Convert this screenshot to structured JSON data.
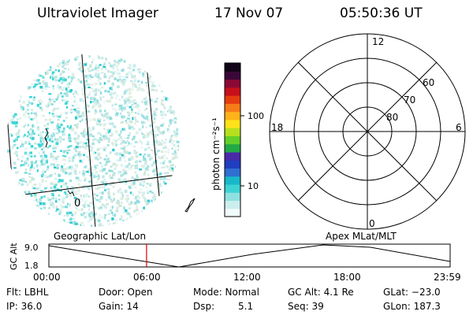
{
  "header": {
    "title": "Ultraviolet Imager",
    "date": "17 Nov 07",
    "time": "05:50:36 UT"
  },
  "geo_panel": {
    "label": "Geographic Lat/Lon",
    "grid_label": "0"
  },
  "colorbar": {
    "unit_label": "photon cm⁻²s⁻¹",
    "ticks": [
      "100",
      "10"
    ],
    "colors": [
      "#f2fbfb",
      "#cdeeee",
      "#8fe1e1",
      "#3ed3d3",
      "#18b8c8",
      "#2f6fd0",
      "#1f3fc0",
      "#4a2aa8",
      "#22a844",
      "#63cf2a",
      "#b6e01e",
      "#ffe21a",
      "#ffb21a",
      "#f57c18",
      "#e43c10",
      "#c8101a",
      "#8a0a35",
      "#3a0838",
      "#100418"
    ],
    "scale": "log"
  },
  "polar_panel": {
    "label": "Apex MLat/MLT",
    "mlt_labels": [
      "12",
      "18",
      "6",
      "0"
    ],
    "lat_labels": [
      "60",
      "70",
      "80"
    ]
  },
  "timeline": {
    "ylabel": "GC Alt",
    "yticks": [
      "9.0",
      "1.8"
    ],
    "xticks": [
      "00:00",
      "06:00",
      "12:00",
      "18:00",
      "23:59"
    ],
    "current_time_fraction": 0.2435,
    "marker_color": "#e00000"
  },
  "status": {
    "flt": "Flt: LBHL",
    "ip": "IP: 36.0",
    "door": "Door: Open",
    "gain": "Gain: 14",
    "mode": "Mode: Normal",
    "dsp": "Dsp:",
    "dsp_val": "5.1",
    "gc_alt": "GC Alt: 4.1 Re",
    "seq": "Seq: 39",
    "glat": "GLat: −23.0",
    "glon": "GLon: 187.3"
  }
}
